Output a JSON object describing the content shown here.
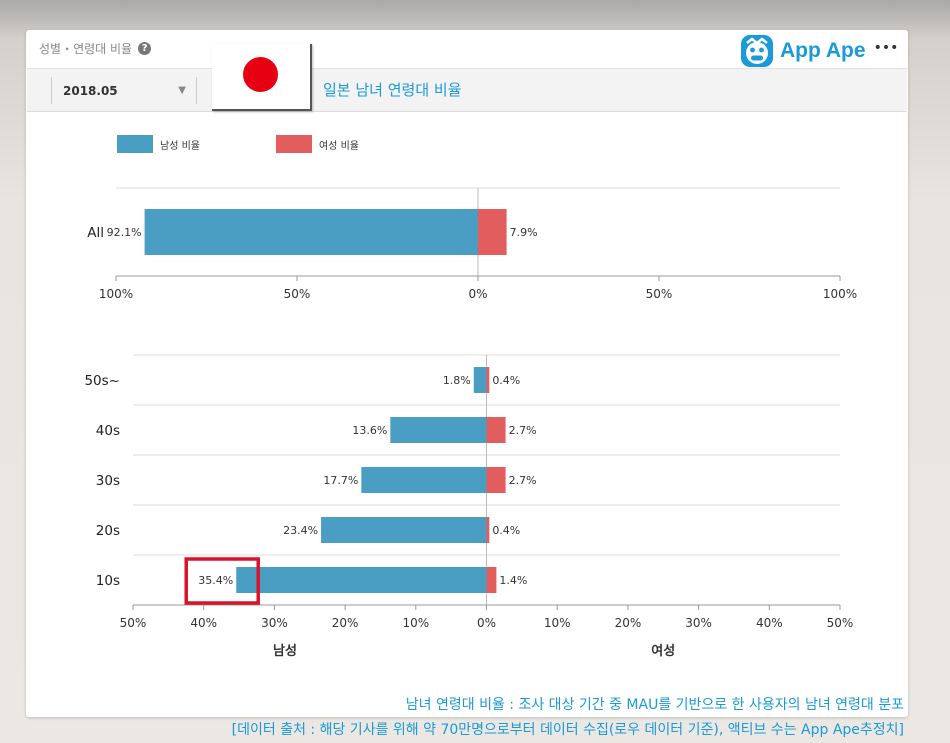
{
  "header": {
    "title": "성별・연령대 비율",
    "help_icon": "?",
    "brand": "App Ape",
    "brand_more": "•••"
  },
  "toolbar": {
    "selected_month": "2018.05",
    "country_title": "일본 남녀 연령대 비율"
  },
  "colors": {
    "male": "#4a9ec4",
    "female": "#e25d5d",
    "highlight": "#d9142a"
  },
  "chart_data": [
    {
      "type": "bar",
      "orientation": "horizontal-diverging",
      "categories": [
        "All"
      ],
      "series": [
        {
          "name": "남성 비율",
          "values": [
            92.1
          ],
          "labels": [
            "92.1%"
          ]
        },
        {
          "name": "여성 비율",
          "values": [
            7.9
          ],
          "labels": [
            "7.9%"
          ]
        }
      ],
      "xlim": [
        -100,
        100
      ],
      "x_ticks": [
        "100%",
        "50%",
        "0%",
        "50%",
        "100%"
      ],
      "legend": "top-left"
    },
    {
      "type": "bar",
      "orientation": "horizontal-diverging",
      "categories": [
        "50s~",
        "40s",
        "30s",
        "20s",
        "10s"
      ],
      "series": [
        {
          "name": "남성",
          "values": [
            1.8,
            13.6,
            17.7,
            23.4,
            35.4
          ],
          "labels": [
            "1.8%",
            "13.6%",
            "17.7%",
            "23.4%",
            "35.4%"
          ]
        },
        {
          "name": "여성",
          "values": [
            0.4,
            2.7,
            2.7,
            0.4,
            1.4
          ],
          "labels": [
            "0.4%",
            "2.7%",
            "2.7%",
            "0.4%",
            "1.4%"
          ]
        }
      ],
      "xlim": [
        -50,
        50
      ],
      "x_ticks": [
        "50%",
        "40%",
        "30%",
        "20%",
        "10%",
        "0%",
        "10%",
        "20%",
        "30%",
        "40%",
        "50%"
      ],
      "xlabel_left": "남성",
      "xlabel_right": "여성",
      "highlighted_label": "35.4%"
    }
  ],
  "footnotes": [
    "남녀 연령대 비율 : 조사 대상 기간 중 MAU를 기반으로 한 사용자의 남녀 연령대 분포",
    "[데이터 출처 : 해당 기사를 위해 약 70만명으로부터 데이터 수집(로우 데이터 기준), 액티브 수는 App Ape추정치]"
  ]
}
